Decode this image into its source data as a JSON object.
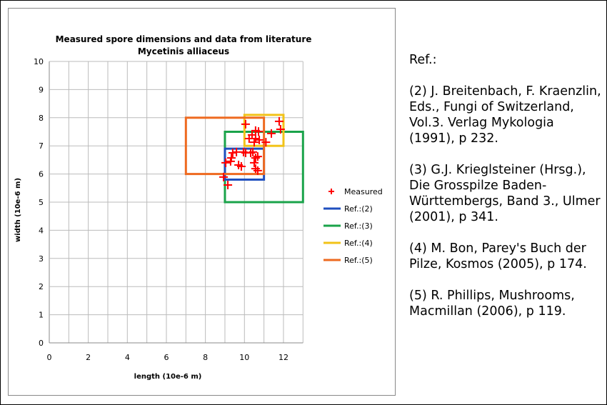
{
  "chart_data": {
    "type": "scatter",
    "title": "Measured spore dimensions and data from literature",
    "subtitle": "Mycetinis alliaceus",
    "xlabel": "length (10e-6 m)",
    "ylabel": "width (10e-6 m)",
    "xlim": [
      0,
      13
    ],
    "ylim": [
      0,
      10
    ],
    "xticks": [
      "0",
      "2",
      "4",
      "6",
      "8",
      "10",
      "12"
    ],
    "yticks": [
      "0",
      "1",
      "2",
      "3",
      "4",
      "5",
      "6",
      "7",
      "8",
      "9",
      "10"
    ],
    "grid": true,
    "legend_position": "right",
    "measured": {
      "name": "Measured",
      "color": "#ff0000",
      "points": [
        [
          10.06,
          7.77
        ],
        [
          11.78,
          7.87
        ],
        [
          11.85,
          7.59
        ],
        [
          11.38,
          7.44
        ],
        [
          10.57,
          7.54
        ],
        [
          10.72,
          7.51
        ],
        [
          10.39,
          7.39
        ],
        [
          10.24,
          7.26
        ],
        [
          10.57,
          7.26
        ],
        [
          10.76,
          7.21
        ],
        [
          11.1,
          7.13
        ],
        [
          10.5,
          7.13
        ],
        [
          9.4,
          6.75
        ],
        [
          9.59,
          6.78
        ],
        [
          9.95,
          6.78
        ],
        [
          10.06,
          6.75
        ],
        [
          10.32,
          6.75
        ],
        [
          10.43,
          6.78
        ],
        [
          9.33,
          6.57
        ],
        [
          10.57,
          6.57
        ],
        [
          10.68,
          6.62
        ],
        [
          9.04,
          6.4
        ],
        [
          9.29,
          6.45
        ],
        [
          9.7,
          6.32
        ],
        [
          9.84,
          6.27
        ],
        [
          10.5,
          6.4
        ],
        [
          10.57,
          6.19
        ],
        [
          10.68,
          6.12
        ],
        [
          8.93,
          5.89
        ],
        [
          9.15,
          5.61
        ]
      ]
    },
    "ranges": [
      {
        "name": "Ref.:(2)",
        "color": "#1f4fbf",
        "x": [
          9,
          11
        ],
        "y": [
          5.8,
          6.9
        ]
      },
      {
        "name": "Ref.:(3)",
        "color": "#1aa34a",
        "x": [
          9,
          13
        ],
        "y": [
          5,
          7.5
        ]
      },
      {
        "name": "Ref.:(4)",
        "color": "#f2c318",
        "x": [
          10,
          12
        ],
        "y": [
          7,
          8.1
        ]
      },
      {
        "name": "Ref.:(5)",
        "color": "#ee6a20",
        "x": [
          7,
          11
        ],
        "y": [
          6,
          8
        ]
      }
    ]
  },
  "refs": {
    "heading": "Ref.:",
    "items": [
      "(2) J. Breitenbach, F. Kraenzlin, Eds., Fungi of Switzerland, Vol.3. Verlag Mykologia (1991), p 232.",
      "(3) G.J. Krieglsteiner (Hrsg.), Die Grosspilze Baden-Württembergs, Band 3., Ulmer (2001), p 341.",
      "(4) M. Bon, Parey's Buch der Pilze, Kosmos (2005), p 174.",
      "(5) R. Phillips, Mushrooms, Macmillan (2006), p 119."
    ]
  }
}
